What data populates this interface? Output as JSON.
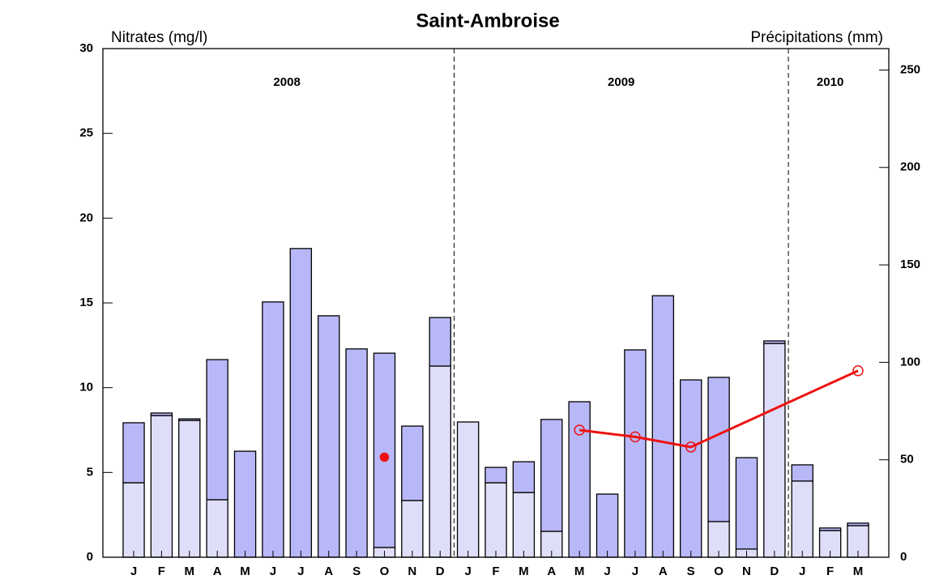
{
  "chart_data": {
    "type": "bar",
    "title": "Saint-Ambroise",
    "y_label": "Nitrates (mg/l)",
    "y2_label": "Précipitations (mm)",
    "categories": [
      "J",
      "F",
      "M",
      "A",
      "M",
      "J",
      "J",
      "A",
      "S",
      "O",
      "N",
      "D",
      "J",
      "F",
      "M",
      "A",
      "M",
      "J",
      "J",
      "A",
      "S",
      "O",
      "N",
      "D",
      "J",
      "F",
      "M"
    ],
    "years": [
      "2008",
      "2009",
      "2010"
    ],
    "ylim": [
      0,
      30
    ],
    "yticks": [
      0,
      5,
      10,
      15,
      20,
      25,
      30
    ],
    "y2lim": [
      0,
      261
    ],
    "y2ticks": [
      0,
      50,
      100,
      150,
      200,
      250
    ],
    "series": [
      {
        "type": "bar",
        "axis": "y2",
        "color": "#dedef9",
        "values": [
          38.2,
          72.7,
          70.2,
          29.5,
          0,
          0,
          0,
          0,
          0,
          5,
          29.1,
          98.1,
          69.4,
          38.2,
          33.2,
          13.3,
          0,
          0,
          0,
          0,
          0,
          18.3,
          4.2,
          109.7,
          39.1,
          13.7,
          16.2
        ]
      },
      {
        "type": "bar",
        "axis": "y2",
        "color": "#b8b8f8",
        "values": [
          30.8,
          1.3,
          0.8,
          71.9,
          54.4,
          131,
          158.4,
          123.9,
          106.9,
          99.7,
          38.2,
          24.9,
          0,
          7.9,
          15.8,
          57.4,
          79.8,
          32.4,
          106.4,
          134.2,
          91,
          74,
          46.9,
          1.3,
          8.3,
          1.3,
          1.3
        ]
      },
      {
        "type": "line",
        "color": "#ee1111",
        "connect_gaps": true,
        "marker": "open",
        "values": [
          null,
          null,
          null,
          null,
          null,
          null,
          null,
          null,
          null,
          null,
          null,
          null,
          null,
          null,
          null,
          null,
          7.5,
          null,
          7.1,
          null,
          6.5,
          null,
          null,
          null,
          null,
          null,
          11
        ]
      },
      {
        "type": "scatter",
        "color": "#ee1111",
        "marker": "filled",
        "values": [
          null,
          null,
          null,
          null,
          null,
          null,
          null,
          null,
          null,
          5.9,
          null,
          null,
          null,
          null,
          null,
          null,
          null,
          null,
          null,
          null,
          null,
          null,
          null,
          null,
          null,
          null,
          null
        ]
      }
    ]
  }
}
